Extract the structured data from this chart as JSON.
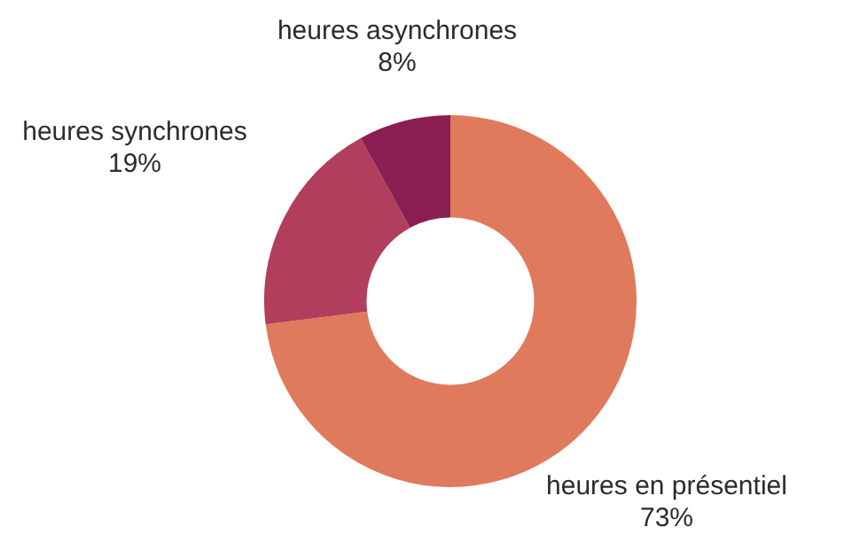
{
  "chart_data": {
    "type": "donut",
    "categories": [
      "heures en présentiel",
      "heures synchrones",
      "heures asynchrones"
    ],
    "values": [
      73,
      19,
      8
    ],
    "colors": [
      "#e07a5c",
      "#b13e5c",
      "#8b1e52"
    ],
    "value_labels": [
      "73%",
      "19%",
      "8%"
    ],
    "legend": false
  }
}
